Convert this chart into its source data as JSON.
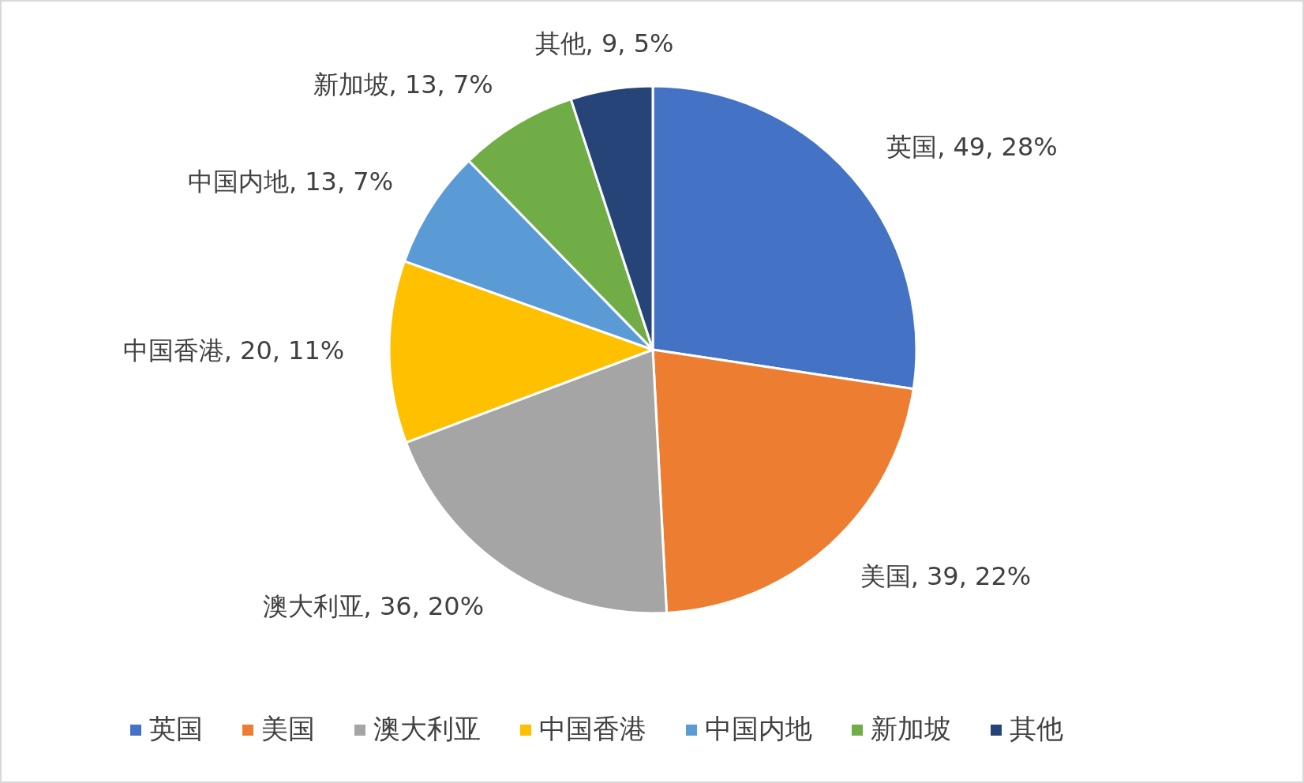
{
  "chart_data": {
    "type": "pie",
    "categories": [
      "英国",
      "美国",
      "澳大利亚",
      "中国香港",
      "中国内地",
      "新加坡",
      "其他"
    ],
    "values": [
      49,
      39,
      36,
      20,
      13,
      13,
      9
    ],
    "colors": [
      "#4472c4",
      "#ed7d31",
      "#a5a5a5",
      "#ffc000",
      "#5b9bd5",
      "#70ad47",
      "#264478"
    ],
    "value_labels": [
      "英国, 49, 28%",
      "美国, 39, 22%",
      "澳大利亚, 36, 20%",
      "中国香港, 20, 11%",
      "中国内地, 13, 7%",
      "新加坡, 13, 7%",
      "其他, 9, 5%"
    ],
    "legend": "bottom"
  }
}
